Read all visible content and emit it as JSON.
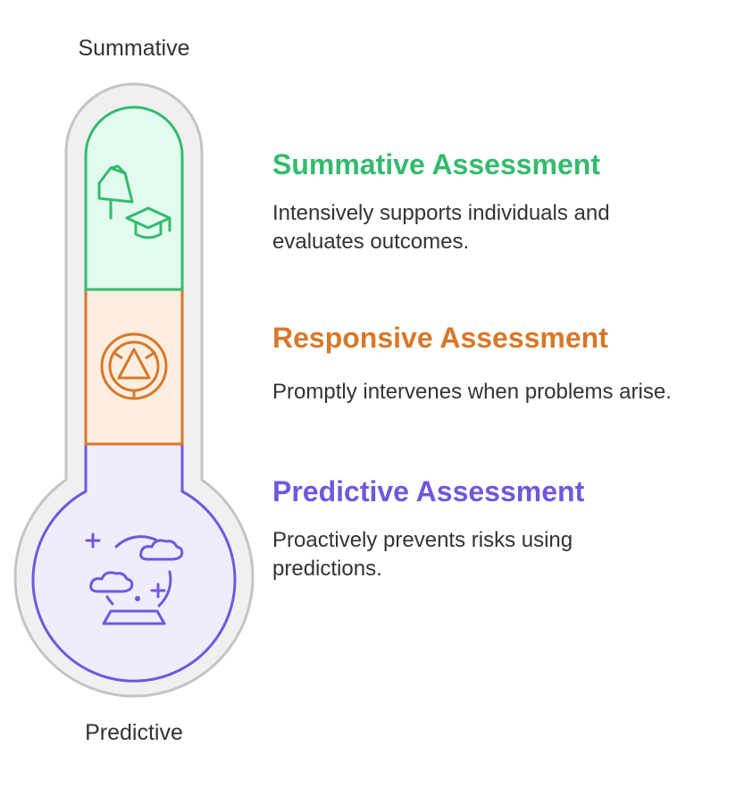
{
  "scale": {
    "top_label": "Summative",
    "bottom_label": "Predictive"
  },
  "stages": [
    {
      "title": "Summative Assessment",
      "description": "Intensively supports individuals and evaluates outcomes.",
      "color": "#33bb6e",
      "fill": "#e2fbee",
      "icon": "bell-graduation-cap-icon"
    },
    {
      "title": "Responsive Assessment",
      "description": "Promptly intervenes when problems arise.",
      "color": "#d8782a",
      "fill": "#fdeee0",
      "icon": "warning-triangle-icon"
    },
    {
      "title": "Predictive Assessment",
      "description": "Proactively prevents risks using predictions.",
      "color": "#7157dd",
      "fill": "#efecfd",
      "icon": "crystal-ball-icon"
    }
  ],
  "thermometer": {
    "outer_fill": "#f0f0f0",
    "outer_stroke": "#c4c4c4"
  }
}
